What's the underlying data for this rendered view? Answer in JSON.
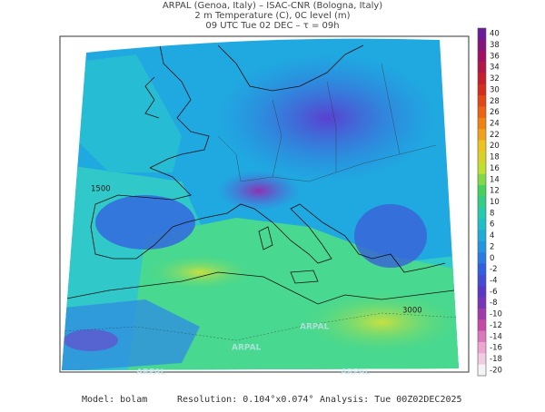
{
  "header": {
    "line1": "ARPAL (Genoa, Italy)  –  ISAC-CNR (Bologna, Italy)",
    "line2": "2 m Temperature (C), 0C level (m)",
    "line3": "09 UTC Tue 02 DEC  –  τ = 09h"
  },
  "colorbar": {
    "ticks": [
      40,
      38,
      36,
      34,
      32,
      30,
      28,
      26,
      24,
      22,
      20,
      18,
      16,
      14,
      12,
      10,
      8,
      6,
      4,
      2,
      0,
      -2,
      -4,
      -6,
      -8,
      -10,
      -12,
      -14,
      -16,
      -18,
      -20
    ]
  },
  "map": {
    "watermark": "ARPAL",
    "contour_labels": [
      "1500",
      "3000"
    ]
  },
  "footer": {
    "model": "Model: bolam",
    "resolution": "Resolution: 0.104°x0.074°",
    "analysis": "Analysis: Tue 00Z02DEC2025"
  }
}
